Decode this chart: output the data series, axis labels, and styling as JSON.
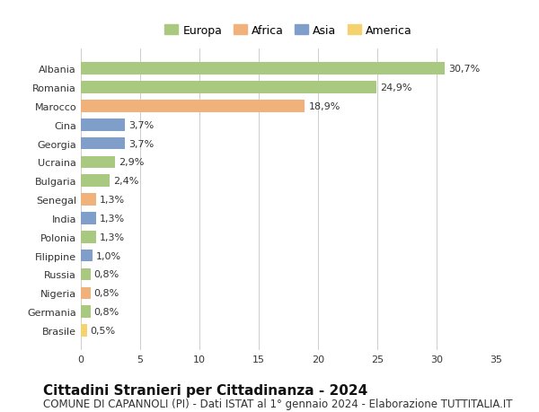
{
  "countries": [
    "Albania",
    "Romania",
    "Marocco",
    "Cina",
    "Georgia",
    "Ucraina",
    "Bulgaria",
    "Senegal",
    "India",
    "Polonia",
    "Filippine",
    "Russia",
    "Nigeria",
    "Germania",
    "Brasile"
  ],
  "values": [
    30.7,
    24.9,
    18.9,
    3.7,
    3.7,
    2.9,
    2.4,
    1.3,
    1.3,
    1.3,
    1.0,
    0.8,
    0.8,
    0.8,
    0.5
  ],
  "labels": [
    "30,7%",
    "24,9%",
    "18,9%",
    "3,7%",
    "3,7%",
    "2,9%",
    "2,4%",
    "1,3%",
    "1,3%",
    "1,3%",
    "1,0%",
    "0,8%",
    "0,8%",
    "0,8%",
    "0,5%"
  ],
  "continents": [
    "Europa",
    "Europa",
    "Africa",
    "Asia",
    "Asia",
    "Europa",
    "Europa",
    "Africa",
    "Asia",
    "Europa",
    "Asia",
    "Europa",
    "Africa",
    "Europa",
    "America"
  ],
  "colors": {
    "Europa": "#a8c97f",
    "Africa": "#f0b27a",
    "Asia": "#7f9ec9",
    "America": "#f5d26e"
  },
  "legend_order": [
    "Europa",
    "Africa",
    "Asia",
    "America"
  ],
  "title": "Cittadini Stranieri per Cittadinanza - 2024",
  "subtitle": "COMUNE DI CAPANNOLI (PI) - Dati ISTAT al 1° gennaio 2024 - Elaborazione TUTTITALIA.IT",
  "xlim": [
    0,
    35
  ],
  "xticks": [
    0,
    5,
    10,
    15,
    20,
    25,
    30,
    35
  ],
  "background_color": "#ffffff",
  "grid_color": "#cccccc",
  "bar_height": 0.65,
  "title_fontsize": 11,
  "subtitle_fontsize": 8.5,
  "label_fontsize": 8,
  "tick_fontsize": 8,
  "legend_fontsize": 9
}
